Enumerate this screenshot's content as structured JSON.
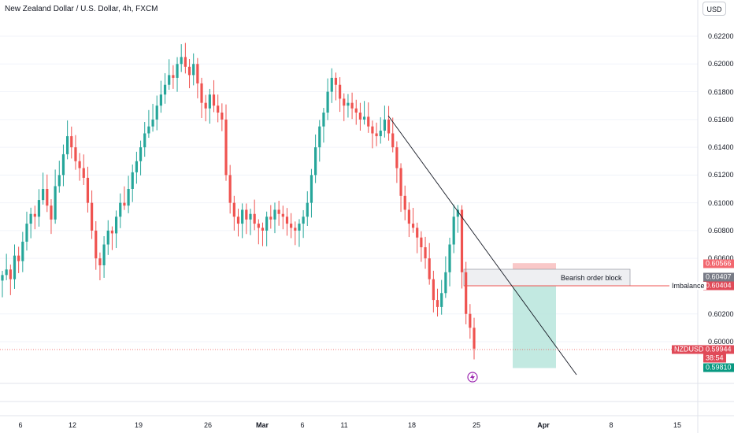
{
  "header": {
    "title": "New Zealand Dollar / U.S. Dollar, 4h, FXCM",
    "currency_button": "USD"
  },
  "price_axis": {
    "ticks": [
      "0.62200",
      "0.62000",
      "0.61800",
      "0.61600",
      "0.61400",
      "0.61200",
      "0.61000",
      "0.60800",
      "0.60600",
      "0.60200",
      "0.60000"
    ],
    "tick_values": [
      0.622,
      0.62,
      0.618,
      0.616,
      0.614,
      0.612,
      0.61,
      0.608,
      0.606,
      0.602,
      0.6
    ]
  },
  "time_axis": {
    "labels": [
      "6",
      "12",
      "19",
      "26",
      "Mar",
      "6",
      "11",
      "18",
      "25",
      "Apr",
      "8",
      "15"
    ],
    "bold": [
      "Mar",
      "Apr"
    ]
  },
  "badges": {
    "top": "0.60566",
    "gray": "0.60407",
    "red": "0.60404",
    "current_price": "0.59944",
    "countdown": "38:54",
    "target": "0.59810",
    "symbol": "NZDUSD"
  },
  "annotations": {
    "order_block": "Bearish order block",
    "imbalance": "Imbalance"
  },
  "icons": {
    "event": "lightning-icon"
  },
  "colors": {
    "up": "#26a69a",
    "down": "#ef5350",
    "stop": "#f7a9a9",
    "target": "#b2e3d9",
    "price_line": "#ef5350"
  },
  "chart_data": {
    "type": "candlestick",
    "symbol": "NZDUSD",
    "interval": "4h",
    "ylim": [
      0.5975,
      0.6228
    ],
    "close_series": [
      0.6048,
      0.6052,
      0.6045,
      0.6062,
      0.6058,
      0.6072,
      0.6085,
      0.6092,
      0.609,
      0.6102,
      0.611,
      0.6098,
      0.6088,
      0.6112,
      0.612,
      0.6135,
      0.6148,
      0.614,
      0.613,
      0.6125,
      0.6118,
      0.61,
      0.608,
      0.606,
      0.6055,
      0.607,
      0.608,
      0.6078,
      0.609,
      0.61,
      0.6098,
      0.611,
      0.6122,
      0.613,
      0.614,
      0.615,
      0.6155,
      0.616,
      0.617,
      0.6178,
      0.6185,
      0.6192,
      0.619,
      0.62,
      0.6205,
      0.6198,
      0.6192,
      0.62,
      0.6186,
      0.6172,
      0.6168,
      0.6178,
      0.617,
      0.6165,
      0.616,
      0.612,
      0.61,
      0.609,
      0.6085,
      0.6095,
      0.6088,
      0.6092,
      0.6085,
      0.6082,
      0.608,
      0.609,
      0.6088,
      0.6095,
      0.6092,
      0.609,
      0.6085,
      0.6082,
      0.608,
      0.6085,
      0.609,
      0.61,
      0.612,
      0.614,
      0.6155,
      0.6165,
      0.618,
      0.619,
      0.6185,
      0.6175,
      0.617,
      0.6172,
      0.6168,
      0.6165,
      0.616,
      0.6162,
      0.6155,
      0.615,
      0.6148,
      0.6152,
      0.616,
      0.615,
      0.614,
      0.6125,
      0.6105,
      0.6095,
      0.6085,
      0.6082,
      0.6075,
      0.6068,
      0.606,
      0.6045,
      0.603,
      0.6025,
      0.6035,
      0.605,
      0.607,
      0.609,
      0.6095,
      0.605,
      0.602,
      0.601,
      0.5995
    ]
  }
}
